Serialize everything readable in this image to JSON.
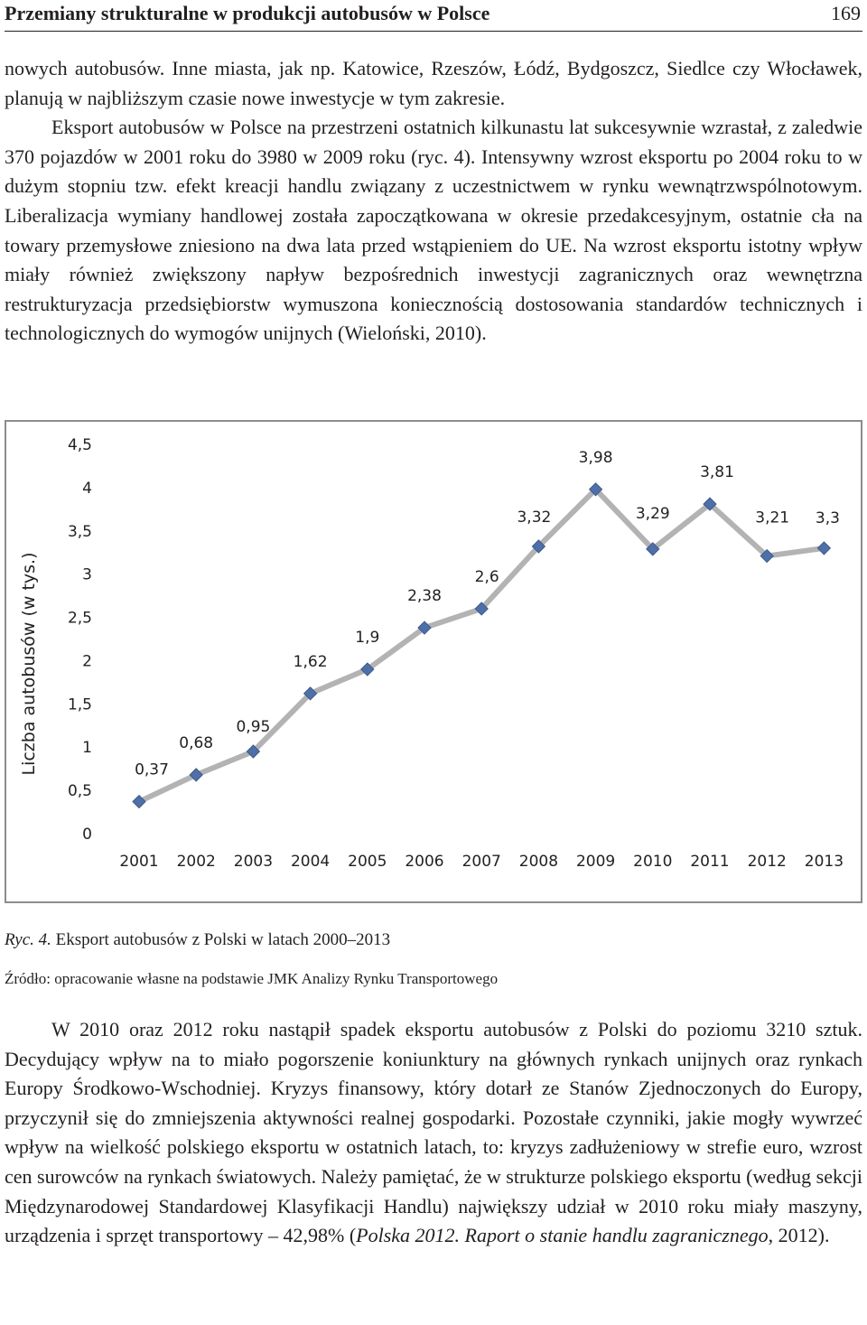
{
  "header": {
    "running_title": "Przemiany strukturalne w produkcji autobusów w Polsce",
    "page_number": "169"
  },
  "paragraph_top": {
    "line0": "nowych autobusów. Inne miasta, jak np. Katowice, Rzeszów, Łódź, Bydgoszcz, Siedlce czy Włocławek, planują w najbliższym czasie nowe inwestycje w tym zakresie.",
    "main": "Eksport autobusów w Polsce na przestrzeni ostatnich kilkunastu lat sukcesywnie wzrastał, z zaledwie 370 pojazdów w 2001 roku do 3980 w 2009 roku (ryc. 4). Intensywny wzrost eksportu po 2004 roku to w dużym stopniu tzw. efekt kreacji handlu związany z uczestnictwem w rynku wewnątrzwspólnotowym. Liberalizacja wymiany handlowej została zapoczątkowana w okresie przedakcesyjnym, ostatnie cła na towary przemysłowe zniesiono na dwa lata przed wstąpieniem do UE. Na wzrost eksportu istotny wpływ miały również zwiększony napływ bezpośrednich inwestycji zagranicznych oraz wewnętrzna restrukturyzacja przedsiębiorstw wymuszona koniecznością dostosowania standardów technicznych i technologicznych do wymogów unijnych (Wieloński, 2010)."
  },
  "chart_data": {
    "type": "line",
    "ylabel": "Liczba autobusów (w tys.)",
    "xlabel": "",
    "title": "",
    "x": [
      "2001",
      "2002",
      "2003",
      "2004",
      "2005",
      "2006",
      "2007",
      "2008",
      "2009",
      "2010",
      "2011",
      "2012",
      "2013"
    ],
    "values": [
      0.37,
      0.68,
      0.95,
      1.62,
      1.9,
      2.38,
      2.6,
      3.32,
      3.98,
      3.29,
      3.81,
      3.21,
      3.3
    ],
    "data_labels": [
      "0,37",
      "0,68",
      "0,95",
      "1,62",
      "1,9",
      "2,38",
      "2,6",
      "3,32",
      "3,98",
      "3,29",
      "3,81",
      "3,21",
      "3,3"
    ],
    "yticks": [
      "0",
      "0,5",
      "1",
      "1,5",
      "2",
      "2,5",
      "3",
      "3,5",
      "4",
      "4,5"
    ],
    "ylim": [
      0,
      4.5
    ],
    "grid": false,
    "legend": "none",
    "line_color": "#b3b3b3",
    "marker_color": "#4f6fa8"
  },
  "figure": {
    "label": "Ryc. 4.",
    "caption": "Eksport autobusów z Polski w latach 2000–2013",
    "source": "Źródło: opracowanie własne na podstawie JMK Analizy Rynku Transportowego"
  },
  "paragraph_bottom": {
    "text_before_italic": "W 2010 oraz 2012 roku nastąpił spadek eksportu autobusów z Polski do poziomu 3210 sztuk. Decydujący wpływ na to miało pogorszenie koniunktury na głównych rynkach unijnych oraz rynkach Europy Środkowo-Wschodniej. Kryzys finansowy, który dotarł ze Stanów Zjednoczonych do Europy, przyczynił się do zmniejszenia aktywności realnej gospodarki. Pozostałe czynniki, jakie mogły wywrzeć wpływ na wielkość polskiego eksportu w ostatnich latach, to: kryzys zadłużeniowy w strefie euro, wzrost cen surowców na rynkach światowych. Należy pamiętać, że w strukturze polskiego eksportu (według sekcji Międzynarodowej Standardowej Klasyfikacji Handlu) największy udział w 2010 roku miały maszyny, urządzenia i sprzęt transportowy – 42,98% (",
    "italic_ref": "Polska 2012. Raport o stanie handlu zagranicznego",
    "text_after_italic": ", 2012)."
  }
}
